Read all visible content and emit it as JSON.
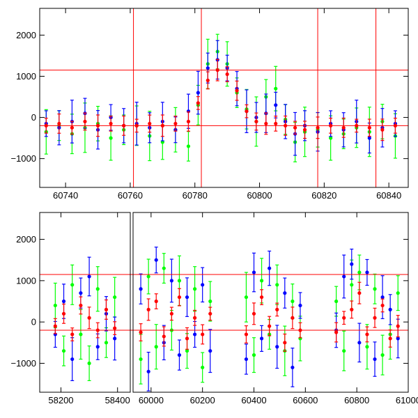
{
  "chart_data": [
    {
      "type": "scatter",
      "title": "",
      "xlabel": "",
      "ylabel": "",
      "xlim": [
        60732,
        60846
      ],
      "ylim": [
        -1700,
        2650
      ],
      "x_ticks": [
        60740,
        60760,
        60780,
        60800,
        60820,
        60840
      ],
      "y_ticks": [
        -1000,
        0,
        1000,
        2000
      ],
      "error_bars": true,
      "grid": false,
      "reference_lines": {
        "horizontal": [
          1150,
          -200
        ],
        "vertical": [
          60761,
          60782,
          60818,
          60836
        ]
      },
      "series": [
        {
          "color": "#0000ff",
          "x": [
            60734,
            60738,
            60742,
            60746,
            60750,
            60754,
            60758,
            60762,
            60766,
            60770,
            60774,
            60778,
            60781,
            60784,
            60787,
            60790,
            60793,
            60796,
            60799,
            60802,
            60805,
            60808,
            60811,
            60814,
            60818,
            60822,
            60826,
            60830,
            60834,
            60838,
            60842
          ],
          "y": [
            -150,
            -250,
            -100,
            100,
            -300,
            0,
            -200,
            -150,
            -250,
            -100,
            -300,
            150,
            600,
            1200,
            1400,
            1200,
            700,
            150,
            0,
            100,
            300,
            -100,
            -400,
            -200,
            -350,
            -150,
            -300,
            -100,
            -500,
            -250,
            -150
          ]
        },
        {
          "color": "#00ff00",
          "x": [
            60734,
            60738,
            60742,
            60746,
            60750,
            60754,
            60758,
            60762,
            60766,
            60770,
            60774,
            60778,
            60781,
            60784,
            60787,
            60790,
            60793,
            60796,
            60799,
            60802,
            60805,
            60808,
            60811,
            60814,
            60818,
            60822,
            60826,
            60830,
            60834,
            60838,
            60842
          ],
          "y": [
            -350,
            -200,
            -400,
            -250,
            -150,
            -500,
            -300,
            -200,
            -450,
            -600,
            -300,
            -700,
            300,
            1300,
            1600,
            1300,
            600,
            200,
            -100,
            500,
            700,
            -50,
            -600,
            -350,
            -300,
            -500,
            -400,
            -250,
            -350,
            -100,
            -450
          ]
        },
        {
          "color": "#ff0000",
          "x": [
            60734,
            60738,
            60742,
            60746,
            60750,
            60754,
            60758,
            60762,
            60766,
            60770,
            60774,
            60778,
            60781,
            60784,
            60787,
            60790,
            60793,
            60796,
            60799,
            60802,
            60805,
            60808,
            60811,
            60814,
            60818,
            60822,
            60826,
            60830,
            60834,
            60838,
            60842
          ],
          "y": [
            -200,
            -150,
            -250,
            -100,
            -200,
            -150,
            -200,
            -200,
            -150,
            -200,
            -150,
            -100,
            350,
            900,
            1150,
            1050,
            650,
            150,
            -100,
            -150,
            -150,
            -200,
            -250,
            -300,
            -250,
            -200,
            -250,
            -200,
            -250,
            -300,
            -200
          ]
        }
      ]
    },
    {
      "type": "scatter",
      "title": "",
      "xlabel": "",
      "ylabel": "",
      "xlim": [
        58125,
        61000
      ],
      "ylim": [
        -1700,
        2650
      ],
      "x_ticks": [
        58200,
        58400,
        60000,
        60200,
        60400,
        60600,
        60800,
        61000
      ],
      "x_tick_labels": [
        "58200",
        "58400",
        "60000",
        "60200",
        "60400",
        "60600",
        "60800",
        "61000"
      ],
      "y_ticks": [
        -1000,
        0,
        1000,
        2000
      ],
      "error_bars": true,
      "grid": false,
      "axis_break": [
        58445,
        59930
      ],
      "reference_lines": {
        "horizontal": [
          1150,
          -200
        ],
        "vertical": []
      },
      "series": [
        {
          "color": "#0000ff",
          "x": [
            58180,
            58210,
            58240,
            58270,
            58300,
            58330,
            58360,
            58390,
            59960,
            59990,
            60020,
            60050,
            60080,
            60110,
            60140,
            60170,
            60200,
            60230,
            60370,
            60400,
            60430,
            60460,
            60490,
            60520,
            60550,
            60580,
            60720,
            60750,
            60780,
            60810,
            60840,
            60870,
            60900,
            60930,
            60960
          ],
          "y": [
            -300,
            500,
            -900,
            700,
            1100,
            -600,
            200,
            -400,
            800,
            -1200,
            1500,
            -500,
            1000,
            -800,
            600,
            -300,
            900,
            -700,
            -900,
            1200,
            -400,
            1300,
            -600,
            700,
            -1100,
            400,
            -200,
            1100,
            1400,
            -500,
            1200,
            -900,
            600,
            300,
            -400
          ]
        },
        {
          "color": "#00ff00",
          "x": [
            58180,
            58210,
            58240,
            58270,
            58300,
            58330,
            58360,
            58390,
            59960,
            59990,
            60020,
            60050,
            60080,
            60110,
            60140,
            60170,
            60200,
            60230,
            60370,
            60400,
            60430,
            60460,
            60490,
            60520,
            60550,
            60580,
            60720,
            60750,
            60780,
            60810,
            60840,
            60870,
            60900,
            60930,
            60960
          ],
          "y": [
            400,
            -700,
            900,
            -300,
            -1000,
            800,
            -500,
            600,
            -900,
            1100,
            -600,
            1300,
            -200,
            1000,
            -700,
            800,
            -1100,
            500,
            600,
            -800,
            1000,
            -300,
            900,
            -700,
            500,
            -400,
            500,
            -700,
            900,
            1200,
            -600,
            800,
            -800,
            -300,
            700
          ]
        },
        {
          "color": "#ff0000",
          "x": [
            58180,
            58210,
            58240,
            58270,
            58300,
            58330,
            58360,
            58390,
            59960,
            59990,
            60020,
            60050,
            60080,
            60110,
            60140,
            60170,
            60200,
            60230,
            60370,
            60400,
            60430,
            60460,
            60490,
            60520,
            60550,
            60580,
            60720,
            60750,
            60780,
            60810,
            60840,
            60870,
            60900,
            60930,
            60960
          ],
          "y": [
            -100,
            200,
            -300,
            400,
            100,
            -200,
            300,
            -150,
            -250,
            300,
            500,
            -350,
            200,
            600,
            -400,
            100,
            -300,
            200,
            -300,
            200,
            600,
            -100,
            300,
            -500,
            100,
            -200,
            -250,
            100,
            300,
            700,
            -300,
            100,
            400,
            -400,
            -100
          ]
        }
      ]
    }
  ]
}
